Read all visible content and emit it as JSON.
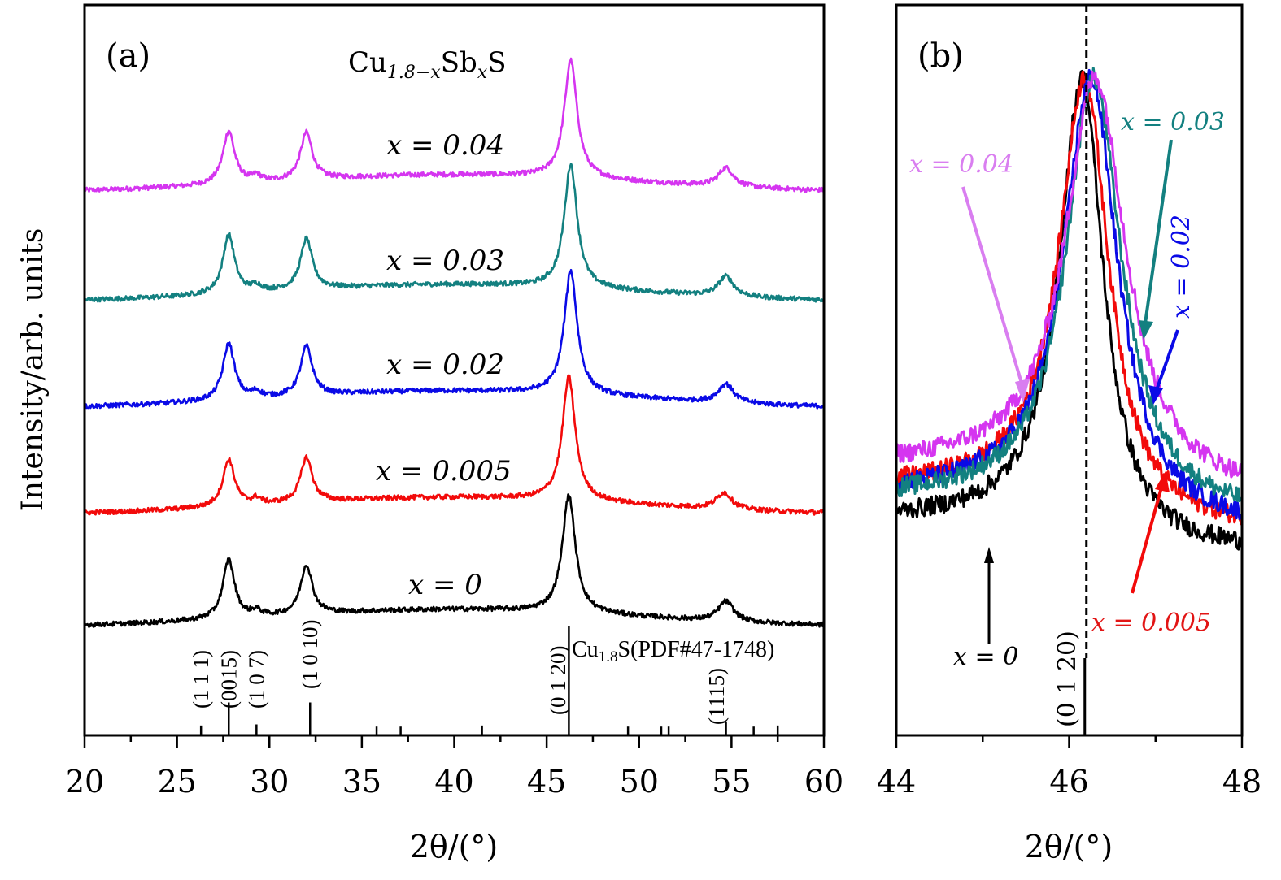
{
  "chart_data": [
    {
      "panel": "a",
      "type": "line",
      "panel_label": "(a)",
      "title": "Cu1.8-xSbxS",
      "title_parts": {
        "base": "Cu",
        "sub1": "1.8−x",
        "mid": "Sb",
        "sub2": "x",
        "end": "S"
      },
      "xlabel": "2θ/(°)",
      "ylabel": "Intensity/arb. units",
      "xlim": [
        20,
        60
      ],
      "xticks": [
        20,
        25,
        30,
        35,
        40,
        45,
        50,
        55,
        60
      ],
      "xtick_labels": [
        "20",
        "25",
        "30",
        "35",
        "40",
        "45",
        "50",
        "55",
        "60"
      ],
      "grid": false,
      "series_description": "Stacked XRD patterns, vertically offset; intensities in arbitrary units (baseline offset, relative peak heights)",
      "series": [
        {
          "name": "x = 0.04",
          "label": "x = 0.04",
          "color": "#d535f0",
          "offset": 4,
          "peaks": [
            {
              "pos": 27.8,
              "h": 0.45
            },
            {
              "pos": 32.0,
              "h": 0.4
            },
            {
              "pos": 46.3,
              "h": 1.0
            },
            {
              "pos": 54.7,
              "h": 0.16
            }
          ],
          "baseline_start": 0.0,
          "baseline_mid": 0.15,
          "baseline_end": 0.0
        },
        {
          "name": "x = 0.03",
          "label": "x = 0.03",
          "color": "#138080",
          "offset": 3,
          "peaks": [
            {
              "pos": 27.8,
              "h": 0.5
            },
            {
              "pos": 32.0,
              "h": 0.43
            },
            {
              "pos": 46.3,
              "h": 1.05
            },
            {
              "pos": 54.7,
              "h": 0.17
            }
          ],
          "baseline_start": 0.0,
          "baseline_mid": 0.15,
          "baseline_end": 0.0
        },
        {
          "name": "x = 0.02",
          "label": "x = 0.02",
          "color": "#0a0ae6",
          "offset": 2,
          "peaks": [
            {
              "pos": 27.8,
              "h": 0.48
            },
            {
              "pos": 32.0,
              "h": 0.42
            },
            {
              "pos": 46.3,
              "h": 1.05
            },
            {
              "pos": 54.7,
              "h": 0.16
            }
          ],
          "baseline_start": 0.0,
          "baseline_mid": 0.15,
          "baseline_end": 0.0
        },
        {
          "name": "x = 0.005",
          "label": "x = 0.005",
          "color": "#f20a0a",
          "offset": 1,
          "peaks": [
            {
              "pos": 27.8,
              "h": 0.4
            },
            {
              "pos": 32.0,
              "h": 0.38
            },
            {
              "pos": 46.2,
              "h": 1.05
            },
            {
              "pos": 54.6,
              "h": 0.14
            }
          ],
          "baseline_start": 0.0,
          "baseline_mid": 0.15,
          "baseline_end": 0.0
        },
        {
          "name": "x = 0",
          "label": "x = 0",
          "color": "#000000",
          "offset": 0,
          "peaks": [
            {
              "pos": 27.8,
              "h": 0.5
            },
            {
              "pos": 32.0,
              "h": 0.42
            },
            {
              "pos": 46.2,
              "h": 1.0
            },
            {
              "pos": 54.7,
              "h": 0.17
            }
          ],
          "baseline_start": 0.0,
          "baseline_mid": 0.15,
          "baseline_end": 0.0
        }
      ],
      "reference_pattern": {
        "label": "Cu1.8S(PDF#47-1748)",
        "label_parts": {
          "base": "Cu",
          "sub": "1.8",
          "end": "S(PDF#47-1748)"
        },
        "lines": [
          {
            "pos": 26.3,
            "rel": 0.09
          },
          {
            "pos": 27.8,
            "rel": 0.3
          },
          {
            "pos": 29.3,
            "rel": 0.1
          },
          {
            "pos": 32.2,
            "rel": 0.3
          },
          {
            "pos": 35.8,
            "rel": 0.08
          },
          {
            "pos": 37.1,
            "rel": 0.08
          },
          {
            "pos": 41.5,
            "rel": 0.09
          },
          {
            "pos": 46.2,
            "rel": 1.0
          },
          {
            "pos": 49.4,
            "rel": 0.08
          },
          {
            "pos": 51.2,
            "rel": 0.08
          },
          {
            "pos": 51.6,
            "rel": 0.08
          },
          {
            "pos": 54.7,
            "rel": 0.12
          },
          {
            "pos": 56.2,
            "rel": 0.08
          },
          {
            "pos": 57.5,
            "rel": 0.09
          }
        ],
        "hkl_labels": [
          {
            "text": "(1 1 1)",
            "pos": 26.3
          },
          {
            "text": "(0015)",
            "pos": 27.8
          },
          {
            "text": "(1 0 7)",
            "pos": 29.3
          },
          {
            "text": "(1 0 10)",
            "pos": 32.2
          },
          {
            "text": "(0 1 20)",
            "pos": 45.6
          },
          {
            "text": "(1115)",
            "pos": 54.2
          }
        ]
      }
    },
    {
      "panel": "b",
      "type": "line",
      "panel_label": "(b)",
      "xlabel": "2θ/(°)",
      "xlim": [
        44,
        48
      ],
      "xticks": [
        44,
        46,
        48
      ],
      "xtick_labels": [
        "44",
        "46",
        "48"
      ],
      "minor_xticks": [
        45,
        47
      ],
      "grid": false,
      "reference_line": {
        "pos": 46.2,
        "style": "dashed",
        "label": "(0 1 20)"
      },
      "series": [
        {
          "name": "x = 0",
          "color": "#000000",
          "peak": 46.15,
          "width_l": 0.32,
          "width_r": 0.3,
          "tail_l": 0.18,
          "tail_r": 0.12
        },
        {
          "name": "x = 0.005",
          "color": "#f20a0a",
          "peak": 46.18,
          "width_l": 0.36,
          "width_r": 0.34,
          "tail_l": 0.24,
          "tail_r": 0.16
        },
        {
          "name": "x = 0.02",
          "color": "#0a0ae6",
          "peak": 46.25,
          "width_l": 0.38,
          "width_r": 0.38,
          "tail_l": 0.23,
          "tail_r": 0.16
        },
        {
          "name": "x = 0.03",
          "color": "#138080",
          "peak": 46.28,
          "width_l": 0.38,
          "width_r": 0.4,
          "tail_l": 0.22,
          "tail_r": 0.18
        },
        {
          "name": "x = 0.04",
          "color": "#d535f0",
          "peak": 46.3,
          "width_l": 0.42,
          "width_r": 0.44,
          "tail_l": 0.28,
          "tail_r": 0.22
        }
      ],
      "annotations": [
        {
          "text": "x = 0.04",
          "color": "#d535f0"
        },
        {
          "text": "x = 0.03",
          "color": "#138080"
        },
        {
          "text": "x = 0.02",
          "color": "#0a0ae6",
          "rotated": true
        },
        {
          "text": "x = 0.005",
          "color": "#f20a0a"
        },
        {
          "text": "x = 0",
          "color": "#000000"
        }
      ]
    }
  ]
}
